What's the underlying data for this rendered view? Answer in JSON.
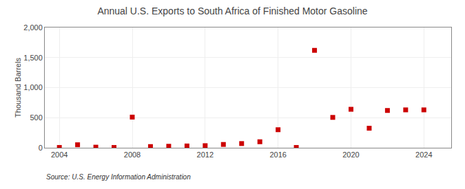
{
  "chart_data": {
    "type": "scatter",
    "title": "Annual U.S. Exports to South Africa of Finished Motor Gasoline",
    "ylabel": "Thousand Barrels",
    "annotations": [
      "Source: U.S. Energy Information Administration"
    ],
    "x": [
      2004,
      2005,
      2006,
      2007,
      2008,
      2009,
      2010,
      2011,
      2012,
      2013,
      2014,
      2015,
      2016,
      2017,
      2018,
      2019,
      2020,
      2021,
      2022,
      2023,
      2024
    ],
    "values": [
      5,
      50,
      10,
      5,
      510,
      20,
      25,
      30,
      35,
      55,
      70,
      100,
      300,
      5,
      1620,
      505,
      640,
      325,
      620,
      630,
      630
    ],
    "color": "#cc0000",
    "marker": "square",
    "xlim": [
      2003.2,
      2025.5
    ],
    "ylim": [
      0,
      2000
    ],
    "xticks": [
      2004,
      2008,
      2012,
      2016,
      2020,
      2024
    ],
    "yticks": [
      0,
      500,
      {
        "value": 1000,
        "label": "1,000"
      },
      {
        "value": 1500,
        "label": "1,500"
      },
      {
        "value": 2000,
        "label": "2,000"
      }
    ],
    "grid": true
  }
}
